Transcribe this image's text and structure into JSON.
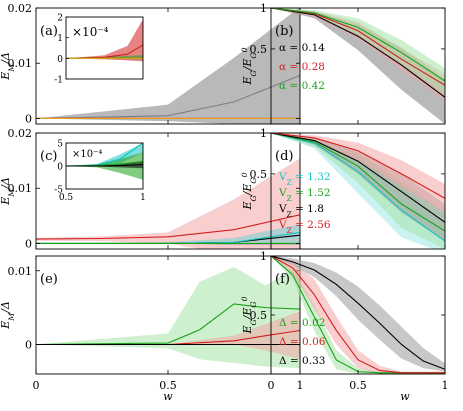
{
  "figure": {
    "xlabel_shared": "w",
    "bottom_xticks": [
      "0",
      "0.5",
      "1"
    ]
  },
  "chart_data": [
    {
      "id": "a",
      "panel_label": "(a)",
      "type": "line",
      "ylabel": "E_M/Δ",
      "xlim": [
        0,
        1
      ],
      "ylim": [
        -0.001,
        0.02
      ],
      "yticks": [
        0,
        0.01,
        0.02
      ],
      "ytick_labels": [
        "0",
        "0.01",
        "0.02"
      ],
      "series": [
        {
          "color": "#808080",
          "x": [
            0,
            0.5,
            0.75,
            1
          ],
          "y": [
            0,
            0.0005,
            0.003,
            0.0078
          ],
          "band_low": [
            0,
            -0.0005,
            -0.001,
            -0.001
          ],
          "band_high": [
            0,
            0.0025,
            0.011,
            0.0202
          ]
        },
        {
          "color": "#d11f1f",
          "x": [
            0,
            0.5,
            1
          ],
          "y": [
            0,
            0,
            0
          ],
          "band_low": [
            0,
            0,
            0
          ],
          "band_high": [
            0,
            0,
            0
          ]
        },
        {
          "color": "#e8a018",
          "x": [
            0,
            0.5,
            1
          ],
          "y": [
            0,
            0,
            0
          ],
          "band_low": [
            0,
            0,
            0
          ],
          "band_high": [
            0,
            0,
            0
          ]
        }
      ],
      "inset": {
        "multiplier": "×10⁻⁴",
        "xlim": [
          0,
          1
        ],
        "ylim": [
          -1,
          2
        ],
        "yticks": [
          -1,
          0,
          1,
          2
        ],
        "ytick_labels": [
          "-1",
          "0",
          "1",
          "2"
        ],
        "series": [
          {
            "color": "#d11f1f",
            "x": [
              0,
              0.5,
              0.8,
              1
            ],
            "y": [
              0,
              0.05,
              0.2,
              0.65
            ],
            "band_low": [
              0,
              -0.05,
              -0.1,
              -0.15
            ],
            "band_high": [
              0,
              0.15,
              0.6,
              1.9
            ]
          },
          {
            "color": "#1aa31a",
            "x": [
              0,
              1
            ],
            "y": [
              0,
              0
            ],
            "band_low": [
              0,
              -0.05
            ],
            "band_high": [
              0,
              0.15
            ]
          },
          {
            "color": "#e8a018",
            "x": [
              0,
              1
            ],
            "y": [
              0,
              0
            ],
            "band_low": [
              0,
              0
            ],
            "band_high": [
              0,
              0
            ]
          }
        ]
      }
    },
    {
      "id": "b",
      "panel_label": "(b)",
      "type": "line",
      "ylabel": "E_G/E_G^0",
      "xlim": [
        0,
        1
      ],
      "ylim": [
        0.14,
        1
      ],
      "yscale": "log",
      "yticks": [
        0.5,
        1
      ],
      "ytick_labels": [
        "0.5",
        "1"
      ],
      "legend": [
        {
          "text": "α = 0.14",
          "color": "#000000"
        },
        {
          "text": "α = 0.28",
          "color": "#d11f1f"
        },
        {
          "text": "α = 0.42",
          "color": "#1aa31a"
        }
      ],
      "series": [
        {
          "color": "#000000",
          "band": "#808080",
          "x": [
            0,
            0.25,
            0.5,
            0.75,
            1
          ],
          "y": [
            1,
            0.89,
            0.62,
            0.38,
            0.22
          ],
          "band_low": [
            1,
            0.84,
            0.49,
            0.25,
            0.14
          ],
          "band_high": [
            1,
            0.94,
            0.76,
            0.51,
            0.3
          ]
        },
        {
          "color": "#d11f1f",
          "band": "#f4a5a5",
          "x": [
            0,
            0.25,
            0.5,
            0.75,
            1
          ],
          "y": [
            1,
            0.91,
            0.68,
            0.42,
            0.27
          ],
          "band_low": [
            1,
            0.86,
            0.6,
            0.35,
            0.21
          ],
          "band_high": [
            1,
            0.95,
            0.79,
            0.5,
            0.33
          ]
        },
        {
          "color": "#1aa31a",
          "band": "#a6e4a6",
          "x": [
            0,
            0.25,
            0.5,
            0.75,
            1
          ],
          "y": [
            1,
            0.92,
            0.72,
            0.47,
            0.29
          ],
          "band_low": [
            1,
            0.88,
            0.64,
            0.39,
            0.23
          ],
          "band_high": [
            1,
            0.96,
            0.84,
            0.58,
            0.36
          ]
        }
      ]
    },
    {
      "id": "c",
      "panel_label": "(c)",
      "type": "line",
      "ylabel": "E_M/Δ",
      "xlim": [
        0,
        1
      ],
      "ylim": [
        -0.001,
        0.02
      ],
      "yticks": [
        0,
        0.01,
        0.02
      ],
      "ytick_labels": [
        "0",
        "0.01",
        "0.02"
      ],
      "series": [
        {
          "color": "#d11f1f",
          "band": "#f4a5a5",
          "x": [
            0,
            0.25,
            0.5,
            0.75,
            1
          ],
          "y": [
            0.0008,
            0.0009,
            0.0012,
            0.0025,
            0.0052
          ],
          "band_low": [
            0.0005,
            0.0004,
            0,
            -0.002,
            -0.0035
          ],
          "band_high": [
            0.001,
            0.0013,
            0.002,
            0.008,
            0.0154
          ]
        },
        {
          "color": "#000000",
          "band": "#9a9a9a",
          "x": [
            0,
            0.5,
            0.75,
            1
          ],
          "y": [
            0,
            0,
            0.0002,
            0.0015
          ],
          "band_low": [
            0,
            0,
            -0.0003,
            -0.0003
          ],
          "band_high": [
            0,
            0.0002,
            0.001,
            0.0035
          ]
        },
        {
          "color": "#14c4c4",
          "band": "#9fe8e8",
          "x": [
            0,
            0.5,
            0.75,
            1
          ],
          "y": [
            0,
            0,
            0.0002,
            0.002
          ],
          "band_low": [
            0,
            0,
            0,
            0
          ],
          "band_high": [
            0,
            0.0002,
            0.001,
            0.0035
          ]
        },
        {
          "color": "#1aa31a",
          "band": "#a6e4a6",
          "x": [
            0,
            0.5,
            1
          ],
          "y": [
            0,
            0,
            0
          ],
          "band_low": [
            0,
            0,
            0
          ],
          "band_high": [
            0,
            0,
            0
          ]
        }
      ],
      "inset": {
        "multiplier": "×10⁻⁴",
        "xlim": [
          0.5,
          1
        ],
        "ylim": [
          -5,
          5
        ],
        "xticks": [
          0.5,
          1
        ],
        "xtick_labels": [
          "0.5",
          "1"
        ],
        "yticks": [
          -5,
          0,
          5
        ],
        "ytick_labels": [
          "-5",
          "0",
          "5"
        ],
        "series": [
          {
            "color": "#14c4c4",
            "x": [
              0.5,
              0.7,
              0.85,
              1
            ],
            "y": [
              0,
              0.2,
              1.5,
              5
            ],
            "band_low": [
              0,
              0,
              0.5,
              3
            ],
            "band_high": [
              0,
              0.4,
              2.5,
              5
            ]
          },
          {
            "color": "#1aa31a",
            "x": [
              0.5,
              0.7,
              0.85,
              1
            ],
            "y": [
              0,
              0.1,
              0.4,
              1.0
            ],
            "band_low": [
              0,
              -0.3,
              -1.5,
              -3
            ],
            "band_high": [
              0,
              0.4,
              1.5,
              3
            ]
          },
          {
            "color": "#000000",
            "x": [
              0.5,
              0.7,
              0.85,
              1
            ],
            "y": [
              0,
              0,
              0.1,
              0.3
            ],
            "band_low": [
              0,
              -0.1,
              -0.3,
              -0.5
            ],
            "band_high": [
              0,
              0.1,
              0.4,
              1.0
            ]
          }
        ]
      }
    },
    {
      "id": "d",
      "panel_label": "(d)",
      "type": "line",
      "ylabel": "E_G/E_G^0",
      "xlim": [
        0,
        1
      ],
      "ylim": [
        0.14,
        1
      ],
      "yscale": "log",
      "yticks": [
        0.5,
        1
      ],
      "ytick_labels": [
        "0.5",
        "1"
      ],
      "legend": [
        {
          "text": "V_Z = 1.32",
          "color": "#14c4c4"
        },
        {
          "text": "V_Z = 1.52",
          "color": "#1aa31a"
        },
        {
          "text": "V_Z = 1.8",
          "color": "#000000"
        },
        {
          "text": "V_Z = 2.56",
          "color": "#d11f1f"
        }
      ],
      "series": [
        {
          "color": "#14c4c4",
          "band": "#9fe8e8",
          "x": [
            0,
            0.25,
            0.5,
            0.75,
            1
          ],
          "y": [
            1,
            0.84,
            0.52,
            0.27,
            0.16
          ],
          "band_low": [
            1,
            0.77,
            0.36,
            0.17,
            0.13
          ],
          "band_high": [
            1,
            0.9,
            0.67,
            0.4,
            0.22
          ]
        },
        {
          "color": "#1aa31a",
          "band": "#a6e4a6",
          "x": [
            0,
            0.25,
            0.5,
            0.75,
            1
          ],
          "y": [
            1,
            0.86,
            0.57,
            0.3,
            0.19
          ],
          "band_low": [
            1,
            0.79,
            0.43,
            0.2,
            0.14
          ],
          "band_high": [
            1,
            0.92,
            0.71,
            0.44,
            0.26
          ]
        },
        {
          "color": "#000000",
          "band": "#9a9a9a",
          "x": [
            0,
            0.25,
            0.5,
            0.75,
            1
          ],
          "y": [
            1,
            0.88,
            0.62,
            0.37,
            0.22
          ],
          "band_low": [
            1,
            0.82,
            0.5,
            0.26,
            0.16
          ],
          "band_high": [
            1,
            0.93,
            0.74,
            0.5,
            0.3
          ]
        },
        {
          "color": "#d11f1f",
          "band": "#f4a5a5",
          "x": [
            0,
            0.25,
            0.5,
            0.75,
            1
          ],
          "y": [
            1,
            0.92,
            0.74,
            0.5,
            0.33
          ],
          "band_low": [
            1,
            0.87,
            0.63,
            0.4,
            0.26
          ],
          "band_high": [
            1,
            0.96,
            0.85,
            0.63,
            0.42
          ]
        }
      ]
    },
    {
      "id": "e",
      "panel_label": "(e)",
      "type": "line",
      "ylabel": "E_M/Δ",
      "xlim": [
        0,
        1
      ],
      "ylim": [
        -0.004,
        0.012
      ],
      "yticks": [
        0,
        0.01
      ],
      "ytick_labels": [
        "0",
        "0.01"
      ],
      "series": [
        {
          "color": "#1aa31a",
          "band": "#a6e4a6",
          "x": [
            0,
            0.5,
            0.62,
            0.75,
            0.87,
            1
          ],
          "y": [
            0,
            0.0002,
            0.002,
            0.0055,
            0.005,
            0.0048
          ],
          "band_low": [
            0,
            -0.0005,
            -0.002,
            -0.0025,
            -0.003,
            -0.0032
          ],
          "band_high": [
            0,
            0.0015,
            0.0085,
            0.0105,
            0.008,
            0.0108
          ]
        },
        {
          "color": "#d11f1f",
          "band": "#f4a5a5",
          "x": [
            0,
            0.5,
            0.75,
            0.87,
            1
          ],
          "y": [
            0,
            0,
            0.0005,
            0.0012,
            0.0019
          ],
          "band_low": [
            0,
            0,
            0,
            -0.0008,
            -0.002
          ],
          "band_high": [
            0,
            0,
            0.0012,
            0.0028,
            0.0045
          ]
        },
        {
          "color": "#000000",
          "band": "#9a9a9a",
          "x": [
            0,
            0.5,
            1
          ],
          "y": [
            0,
            0,
            0
          ],
          "band_low": [
            0,
            0,
            0
          ],
          "band_high": [
            0,
            0,
            0
          ]
        }
      ]
    },
    {
      "id": "f",
      "panel_label": "(f)",
      "type": "line",
      "ylabel": "E_G/E_G^0",
      "xlim": [
        0,
        1
      ],
      "ylim": [
        0,
        1
      ],
      "yticks": [
        0.5,
        1
      ],
      "ytick_labels": [
        "0.5",
        "1"
      ],
      "legend": [
        {
          "text": "Δ = 0.02",
          "color": "#1aa31a"
        },
        {
          "text": "Δ = 0.06",
          "color": "#d11f1f"
        },
        {
          "text": "Δ = 0.33",
          "color": "#000000"
        }
      ],
      "series": [
        {
          "color": "#1aa31a",
          "band": "#a6e4a6",
          "x": [
            0,
            0.125,
            0.25,
            0.375,
            0.5,
            0.625,
            1
          ],
          "y": [
            1,
            0.84,
            0.48,
            0.12,
            0.02,
            0.01,
            0.01
          ],
          "band_low": [
            1,
            0.8,
            0.36,
            0.04,
            0,
            0,
            0
          ],
          "band_high": [
            1,
            0.9,
            0.58,
            0.2,
            0.05,
            0.02,
            0.02
          ]
        },
        {
          "color": "#d11f1f",
          "band": "#f4a5a5",
          "x": [
            0,
            0.125,
            0.25,
            0.375,
            0.5,
            0.625,
            0.75,
            1
          ],
          "y": [
            1,
            0.9,
            0.67,
            0.37,
            0.12,
            0.03,
            0.01,
            0.01
          ],
          "band_low": [
            1,
            0.85,
            0.55,
            0.25,
            0.05,
            0,
            0,
            0
          ],
          "band_high": [
            1,
            0.95,
            0.8,
            0.49,
            0.2,
            0.07,
            0.02,
            0.02
          ]
        },
        {
          "color": "#000000",
          "band": "#9a9a9a",
          "x": [
            0,
            0.125,
            0.25,
            0.375,
            0.5,
            0.625,
            0.75,
            0.875,
            1
          ],
          "y": [
            1,
            0.95,
            0.88,
            0.76,
            0.6,
            0.43,
            0.25,
            0.11,
            0.04
          ],
          "band_low": [
            1,
            0.92,
            0.82,
            0.66,
            0.46,
            0.29,
            0.13,
            0.05,
            0.02
          ],
          "band_high": [
            1,
            0.98,
            0.94,
            0.86,
            0.74,
            0.58,
            0.4,
            0.22,
            0.09
          ]
        }
      ]
    }
  ]
}
